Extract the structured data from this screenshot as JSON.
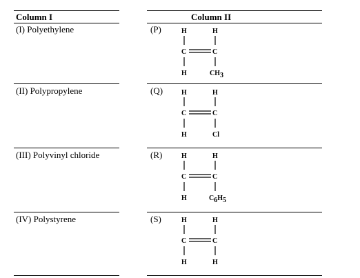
{
  "table": {
    "headers": {
      "col1": "Column I",
      "col2": "Column II"
    },
    "rows": [
      {
        "polymer": "(I) Polyethylene",
        "label": "(P)",
        "monomer": {
          "top_left": "H",
          "top_right": "H",
          "left_carbon": "C",
          "right_carbon": "C",
          "bottom_left": "H",
          "bottom_right_main": "CH",
          "bottom_right_sub": "3",
          "bottom_right_tail": ""
        }
      },
      {
        "polymer": "(II) Polypropylene",
        "label": "(Q)",
        "monomer": {
          "top_left": "H",
          "top_right": "H",
          "left_carbon": "C",
          "right_carbon": "C",
          "bottom_left": "H",
          "bottom_right_main": "Cl",
          "bottom_right_sub": "",
          "bottom_right_tail": ""
        }
      },
      {
        "polymer": "(III) Polyvinyl chloride",
        "label": "(R)",
        "monomer": {
          "top_left": "H",
          "top_right": "H",
          "left_carbon": "C",
          "right_carbon": "C",
          "bottom_left": "H",
          "bottom_right_main": "C",
          "bottom_right_sub": "6",
          "bottom_right_tail": "H",
          "bottom_right_sub2": "5"
        }
      },
      {
        "polymer": "(IV) Polystyrene",
        "label": "(S)",
        "monomer": {
          "top_left": "H",
          "top_right": "H",
          "left_carbon": "C",
          "right_carbon": "C",
          "bottom_left": "H",
          "bottom_right_main": "H",
          "bottom_right_sub": "",
          "bottom_right_tail": ""
        }
      }
    ]
  }
}
